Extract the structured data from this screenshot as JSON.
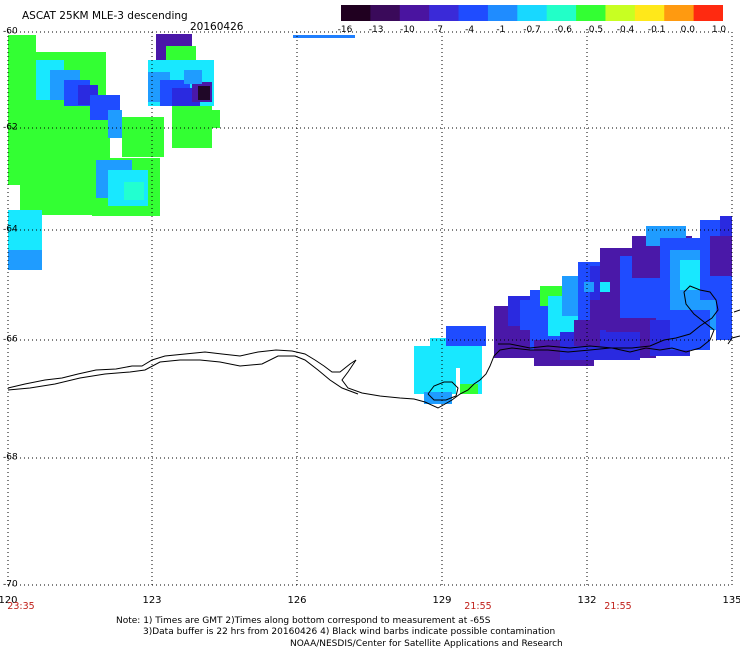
{
  "header": {
    "title": "ASCAT 25KM MLE-3 descending",
    "date": "20160426"
  },
  "colorbar": {
    "labels": [
      "-16",
      "-13",
      "-10",
      "-7",
      "-4",
      "-1",
      "-0.7",
      "-0.6",
      "-0.5",
      "-0.4",
      "-0.1",
      "0.0",
      "1.0"
    ],
    "colors": [
      "#200020",
      "#3a0a5a",
      "#4a14a0",
      "#3a2ad8",
      "#1f4cff",
      "#1f8cff",
      "#18d8ff",
      "#22ffc8",
      "#33ff33",
      "#c8ff22",
      "#ffe81a",
      "#ff9a10",
      "#ff2a10"
    ]
  },
  "axes": {
    "lon_labels": [
      "120",
      "123",
      "126",
      "129",
      "132",
      "135"
    ],
    "lat_labels": [
      "-60",
      "-62",
      "-64",
      "-66",
      "-68",
      "-70"
    ]
  },
  "times": [
    "23:35",
    "21:55",
    "21:55"
  ],
  "notes": {
    "line1": "Note: 1) Times are GMT 2)Times along bottom correspond to measurement at -65S",
    "line2": "3)Data buffer is 22 hrs from 20160426 4) Black wind barbs indicate possible contamination",
    "line3": "NOAA/NESDIS/Center for Satellite Applications and Research"
  },
  "colors": {
    "grid": "#000000",
    "coast": "#000000",
    "time_label": "#c0201a",
    "timeline_mark": "#1f7fff"
  },
  "icons": {
    "map": "polar-map",
    "colorbar": "mle-colorbar"
  }
}
